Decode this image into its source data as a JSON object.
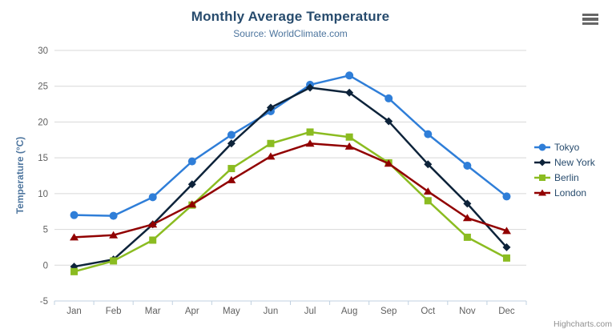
{
  "chart_data": {
    "type": "line",
    "title": "Monthly Average Temperature",
    "subtitle": "Source: WorldClimate.com",
    "categories": [
      "Jan",
      "Feb",
      "Mar",
      "Apr",
      "May",
      "Jun",
      "Jul",
      "Aug",
      "Sep",
      "Oct",
      "Nov",
      "Dec"
    ],
    "series": [
      {
        "name": "Tokyo",
        "color": "#2f7ed8",
        "marker": "circle",
        "values": [
          7.0,
          6.9,
          9.5,
          14.5,
          18.2,
          21.5,
          25.2,
          26.5,
          23.3,
          18.3,
          13.9,
          9.6
        ]
      },
      {
        "name": "New York",
        "color": "#0d233a",
        "marker": "diamond",
        "values": [
          -0.2,
          0.8,
          5.7,
          11.3,
          17.0,
          22.0,
          24.8,
          24.1,
          20.1,
          14.1,
          8.6,
          2.5
        ]
      },
      {
        "name": "Berlin",
        "color": "#8bbc21",
        "marker": "square",
        "values": [
          -0.9,
          0.6,
          3.5,
          8.4,
          13.5,
          17.0,
          18.6,
          17.9,
          14.3,
          9.0,
          3.9,
          1.0
        ]
      },
      {
        "name": "London",
        "color": "#910000",
        "marker": "triangle",
        "values": [
          3.9,
          4.2,
          5.7,
          8.5,
          11.9,
          15.2,
          17.0,
          16.6,
          14.2,
          10.3,
          6.6,
          4.8
        ]
      }
    ],
    "xlabel": "",
    "ylabel": "Temperature (°C)",
    "ylim": [
      -5,
      30
    ],
    "yticks": [
      -5,
      0,
      5,
      10,
      15,
      20,
      25,
      30
    ],
    "grid": true,
    "legend_position": "right",
    "colors": {
      "grid_line": "#d8d8d8",
      "axis_line": "#c0d0e0",
      "tick_label": "#606060",
      "title_text": "#274b6d",
      "subtitle_text": "#4d759e"
    }
  },
  "toolbar": {
    "context_menu_icon": "hamburger"
  },
  "credits": {
    "label": "Highcharts.com"
  }
}
